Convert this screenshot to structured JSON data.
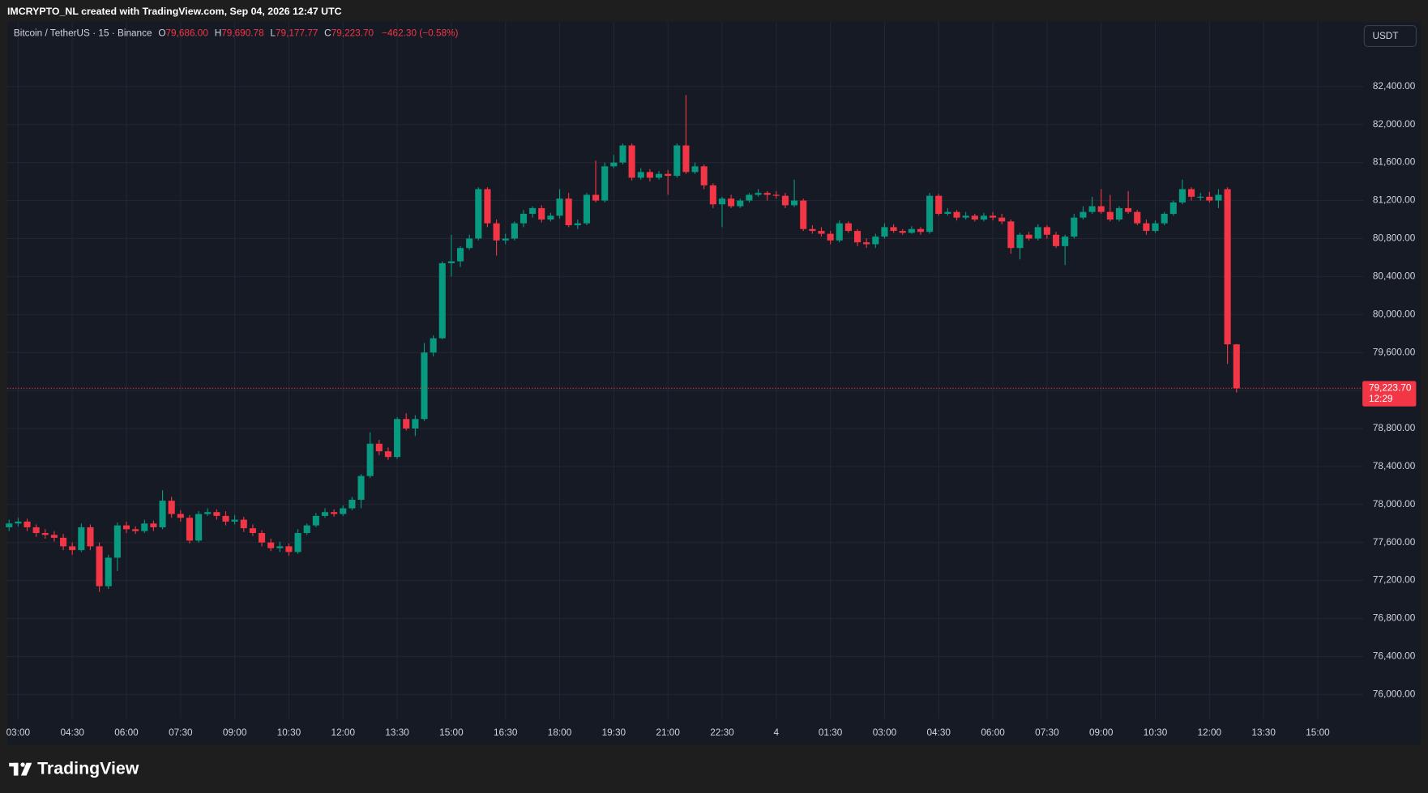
{
  "header": "IMCRYPTO_NL created with TradingView.com, Sep 04, 2026 12:47 UTC",
  "footer": {
    "logo": "TradingView"
  },
  "chart_data": {
    "type": "candlestick",
    "symbol": "Bitcoin / TetherUS · 15 · Binance",
    "ohlc_legend": [
      {
        "label": "O",
        "value": "79,686.00"
      },
      {
        "label": "H",
        "value": "79,690.78"
      },
      {
        "label": "L",
        "value": "79,177.77"
      },
      {
        "label": "C",
        "value": "79,223.70"
      }
    ],
    "change": "−462.30 (−0.58%)",
    "currency": "USDT",
    "last_price_label": "79,223.70",
    "countdown": "12:29",
    "up_color": "#089981",
    "down_color": "#f23645",
    "grid": true,
    "ylim": [
      75740,
      83080
    ],
    "yticks": [
      {
        "value": 76000,
        "label": "76,000.00"
      },
      {
        "value": 76400,
        "label": "76,400.00"
      },
      {
        "value": 76800,
        "label": "76,800.00"
      },
      {
        "value": 77200,
        "label": "77,200.00"
      },
      {
        "value": 77600,
        "label": "77,600.00"
      },
      {
        "value": 78000,
        "label": "78,000.00"
      },
      {
        "value": 78400,
        "label": "78,400.00"
      },
      {
        "value": 78800,
        "label": "78,800.00"
      },
      {
        "value": 79200,
        "label": "79,200.00"
      },
      {
        "value": 79600,
        "label": "79,600.00"
      },
      {
        "value": 80000,
        "label": "80,000.00"
      },
      {
        "value": 80400,
        "label": "80,400.00"
      },
      {
        "value": 80800,
        "label": "80,800.00"
      },
      {
        "value": 81200,
        "label": "81,200.00"
      },
      {
        "value": 81600,
        "label": "81,600.00"
      },
      {
        "value": 82000,
        "label": "82,000.00"
      },
      {
        "value": 82400,
        "label": "82,400.00"
      }
    ],
    "xticks": [
      {
        "value": 1,
        "label": "03:00"
      },
      {
        "value": 7,
        "label": "04:30"
      },
      {
        "value": 13,
        "label": "06:00"
      },
      {
        "value": 19,
        "label": "07:30"
      },
      {
        "value": 25,
        "label": "09:00"
      },
      {
        "value": 31,
        "label": "10:30"
      },
      {
        "value": 37,
        "label": "12:00"
      },
      {
        "value": 43,
        "label": "13:30"
      },
      {
        "value": 49,
        "label": "15:00"
      },
      {
        "value": 55,
        "label": "16:30"
      },
      {
        "value": 61,
        "label": "18:00"
      },
      {
        "value": 67,
        "label": "19:30"
      },
      {
        "value": 73,
        "label": "21:00"
      },
      {
        "value": 79,
        "label": "22:30"
      },
      {
        "value": 85,
        "label": "4"
      },
      {
        "value": 91,
        "label": "01:30"
      },
      {
        "value": 97,
        "label": "03:00"
      },
      {
        "value": 103,
        "label": "04:30"
      },
      {
        "value": 109,
        "label": "06:00"
      },
      {
        "value": 115,
        "label": "07:30"
      },
      {
        "value": 121,
        "label": "09:00"
      },
      {
        "value": 127,
        "label": "10:30"
      },
      {
        "value": 133,
        "label": "12:00"
      },
      {
        "value": 139,
        "label": "13:30"
      },
      {
        "value": 145,
        "label": "15:00"
      }
    ],
    "candles": [
      [
        77760,
        77840,
        77720,
        77800
      ],
      [
        77800,
        77860,
        77770,
        77820
      ],
      [
        77820,
        77850,
        77720,
        77760
      ],
      [
        77760,
        77790,
        77660,
        77700
      ],
      [
        77700,
        77740,
        77640,
        77680
      ],
      [
        77680,
        77720,
        77610,
        77650
      ],
      [
        77650,
        77690,
        77520,
        77560
      ],
      [
        77560,
        77600,
        77470,
        77520
      ],
      [
        77520,
        77800,
        77500,
        77760
      ],
      [
        77760,
        77790,
        77520,
        77560
      ],
      [
        77560,
        77600,
        77080,
        77140
      ],
      [
        77140,
        77470,
        77110,
        77440
      ],
      [
        77440,
        77810,
        77300,
        77780
      ],
      [
        77780,
        77820,
        77700,
        77740
      ],
      [
        77740,
        77770,
        77690,
        77720
      ],
      [
        77720,
        77840,
        77700,
        77800
      ],
      [
        77800,
        77830,
        77720,
        77760
      ],
      [
        77760,
        78150,
        77740,
        78040
      ],
      [
        78040,
        78080,
        77860,
        77900
      ],
      [
        77900,
        77940,
        77820,
        77860
      ],
      [
        77860,
        77890,
        77590,
        77620
      ],
      [
        77620,
        77930,
        77600,
        77900
      ],
      [
        77900,
        77960,
        77880,
        77920
      ],
      [
        77920,
        77950,
        77840,
        77880
      ],
      [
        77880,
        77930,
        77780,
        77820
      ],
      [
        77820,
        77890,
        77790,
        77840
      ],
      [
        77840,
        77870,
        77710,
        77750
      ],
      [
        77750,
        77790,
        77670,
        77700
      ],
      [
        77700,
        77730,
        77560,
        77600
      ],
      [
        77600,
        77640,
        77510,
        77540
      ],
      [
        77540,
        77610,
        77500,
        77560
      ],
      [
        77560,
        77590,
        77460,
        77500
      ],
      [
        77500,
        77740,
        77480,
        77700
      ],
      [
        77700,
        77800,
        77680,
        77780
      ],
      [
        77780,
        77910,
        77760,
        77880
      ],
      [
        77880,
        77960,
        77860,
        77920
      ],
      [
        77920,
        77950,
        77870,
        77900
      ],
      [
        77900,
        77990,
        77880,
        77960
      ],
      [
        77960,
        78080,
        77940,
        78050
      ],
      [
        78050,
        78320,
        77960,
        78300
      ],
      [
        78300,
        78760,
        78280,
        78640
      ],
      [
        78640,
        78680,
        78520,
        78560
      ],
      [
        78560,
        78600,
        78470,
        78500
      ],
      [
        78500,
        78920,
        78480,
        78900
      ],
      [
        78900,
        78960,
        78780,
        78800
      ],
      [
        78800,
        78940,
        78720,
        78900
      ],
      [
        78900,
        79700,
        78880,
        79600
      ],
      [
        79600,
        79780,
        79560,
        79750
      ],
      [
        79750,
        80560,
        79740,
        80540
      ],
      [
        80540,
        80840,
        80400,
        80560
      ],
      [
        80560,
        80720,
        80500,
        80700
      ],
      [
        80700,
        80840,
        80680,
        80800
      ],
      [
        80800,
        81340,
        80780,
        81320
      ],
      [
        81320,
        81340,
        80920,
        80960
      ],
      [
        80960,
        81000,
        80620,
        80780
      ],
      [
        80780,
        80850,
        80740,
        80800
      ],
      [
        80800,
        80980,
        80780,
        80960
      ],
      [
        80960,
        81100,
        80920,
        81060
      ],
      [
        81060,
        81140,
        81020,
        81120
      ],
      [
        81120,
        81150,
        80970,
        81000
      ],
      [
        81000,
        81070,
        80980,
        81040
      ],
      [
        81040,
        81320,
        81010,
        81220
      ],
      [
        81220,
        81280,
        80920,
        80940
      ],
      [
        80940,
        81000,
        80900,
        80960
      ],
      [
        80960,
        81280,
        80940,
        81260
      ],
      [
        81260,
        81620,
        81180,
        81200
      ],
      [
        81200,
        81600,
        81180,
        81560
      ],
      [
        81560,
        81680,
        81540,
        81600
      ],
      [
        81600,
        81800,
        81580,
        81780
      ],
      [
        81780,
        81800,
        81410,
        81440
      ],
      [
        81440,
        81540,
        81420,
        81500
      ],
      [
        81500,
        81530,
        81400,
        81440
      ],
      [
        81440,
        81510,
        81420,
        81480
      ],
      [
        81480,
        81520,
        81260,
        81460
      ],
      [
        81460,
        81800,
        81440,
        81780
      ],
      [
        81780,
        82310,
        81480,
        81500
      ],
      [
        81500,
        81600,
        81480,
        81560
      ],
      [
        81560,
        81580,
        81320,
        81360
      ],
      [
        81360,
        81380,
        81120,
        81160
      ],
      [
        81160,
        81240,
        80920,
        81220
      ],
      [
        81220,
        81260,
        81120,
        81140
      ],
      [
        81140,
        81220,
        81120,
        81200
      ],
      [
        81200,
        81280,
        81180,
        81260
      ],
      [
        81260,
        81320,
        81240,
        81280
      ],
      [
        81280,
        81300,
        81200,
        81260
      ],
      [
        81260,
        81300,
        81220,
        81250
      ],
      [
        81250,
        81280,
        81120,
        81150
      ],
      [
        81150,
        81420,
        81130,
        81200
      ],
      [
        81200,
        81220,
        80880,
        80900
      ],
      [
        80900,
        80940,
        80850,
        80880
      ],
      [
        80880,
        80920,
        80820,
        80850
      ],
      [
        80850,
        80880,
        80740,
        80780
      ],
      [
        80780,
        80990,
        80760,
        80960
      ],
      [
        80960,
        80980,
        80860,
        80880
      ],
      [
        80880,
        80900,
        80720,
        80760
      ],
      [
        80760,
        80800,
        80700,
        80740
      ],
      [
        80740,
        80850,
        80700,
        80820
      ],
      [
        80820,
        80960,
        80800,
        80920
      ],
      [
        80920,
        80950,
        80860,
        80880
      ],
      [
        80880,
        80900,
        80840,
        80860
      ],
      [
        80860,
        80930,
        80850,
        80900
      ],
      [
        80900,
        80920,
        80840,
        80870
      ],
      [
        80870,
        81280,
        80850,
        81250
      ],
      [
        81250,
        81270,
        81040,
        81060
      ],
      [
        81060,
        81120,
        81040,
        81080
      ],
      [
        81080,
        81100,
        80990,
        81020
      ],
      [
        81020,
        81080,
        81000,
        81040
      ],
      [
        81040,
        81060,
        80980,
        81000
      ],
      [
        81000,
        81070,
        80980,
        81040
      ],
      [
        81040,
        81080,
        80990,
        81020
      ],
      [
        81020,
        81060,
        80950,
        80980
      ],
      [
        80980,
        81000,
        80640,
        80700
      ],
      [
        80700,
        80860,
        80580,
        80840
      ],
      [
        80840,
        80870,
        80780,
        80800
      ],
      [
        80800,
        80950,
        80780,
        80920
      ],
      [
        80920,
        80940,
        80800,
        80840
      ],
      [
        80840,
        80870,
        80700,
        80720
      ],
      [
        80720,
        80840,
        80520,
        80820
      ],
      [
        80820,
        81060,
        80800,
        81020
      ],
      [
        81020,
        81140,
        81000,
        81080
      ],
      [
        81080,
        81240,
        81060,
        81140
      ],
      [
        81140,
        81320,
        81060,
        81080
      ],
      [
        81080,
        81260,
        80980,
        81000
      ],
      [
        81000,
        81140,
        80980,
        81120
      ],
      [
        81120,
        81300,
        81060,
        81080
      ],
      [
        81080,
        81100,
        80940,
        80960
      ],
      [
        80960,
        81000,
        80840,
        80880
      ],
      [
        80880,
        80990,
        80860,
        80960
      ],
      [
        80960,
        81080,
        80940,
        81060
      ],
      [
        81060,
        81200,
        81040,
        81180
      ],
      [
        81180,
        81420,
        81160,
        81320
      ],
      [
        81320,
        81340,
        81200,
        81240
      ],
      [
        81240,
        81280,
        81200,
        81240
      ],
      [
        81240,
        81290,
        81180,
        81200
      ],
      [
        81200,
        81320,
        81120,
        81260
      ],
      [
        81320,
        81340,
        79480,
        79686
      ],
      [
        79686,
        79690.78,
        79177.77,
        79223.7
      ]
    ]
  }
}
